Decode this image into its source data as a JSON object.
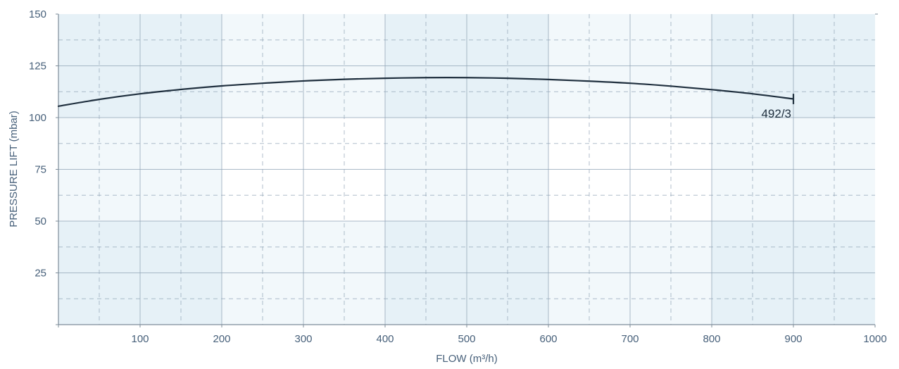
{
  "chart_data": {
    "type": "line",
    "xlabel": "FLOW (m³/h)",
    "ylabel": "PRESSURE LIFT (mbar)",
    "xlim": [
      0,
      1000
    ],
    "ylim": [
      0,
      150
    ],
    "x_ticks": [
      100,
      200,
      300,
      400,
      500,
      600,
      700,
      800,
      900,
      1000
    ],
    "y_ticks": [
      25,
      50,
      75,
      100,
      125,
      150
    ],
    "x_tick_labels": [
      "100",
      "200",
      "300",
      "400",
      "500",
      "600",
      "700",
      "800",
      "900",
      "1000"
    ],
    "y_tick_labels": [
      "25",
      "50",
      "75",
      "100",
      "125",
      "150"
    ],
    "grid": true,
    "series": [
      {
        "name": "492/3",
        "x": [
          0,
          50,
          100,
          150,
          200,
          250,
          300,
          350,
          400,
          450,
          500,
          550,
          600,
          650,
          700,
          750,
          800,
          850,
          900
        ],
        "y": [
          105.5,
          108.8,
          111.5,
          113.6,
          115.3,
          116.6,
          117.7,
          118.5,
          119.0,
          119.3,
          119.3,
          119.0,
          118.4,
          117.6,
          116.6,
          115.2,
          113.5,
          111.5,
          109.0
        ]
      }
    ],
    "curve_end_marker": {
      "x": 900,
      "y_range": [
        106.5,
        111.5
      ]
    },
    "colors": {
      "curve": "#1f2f3e",
      "axis_text": "#47607a",
      "grid_line": "#8fa3b5",
      "band_dark": "#e6f1f7",
      "band_light": "#f2f8fb"
    }
  }
}
